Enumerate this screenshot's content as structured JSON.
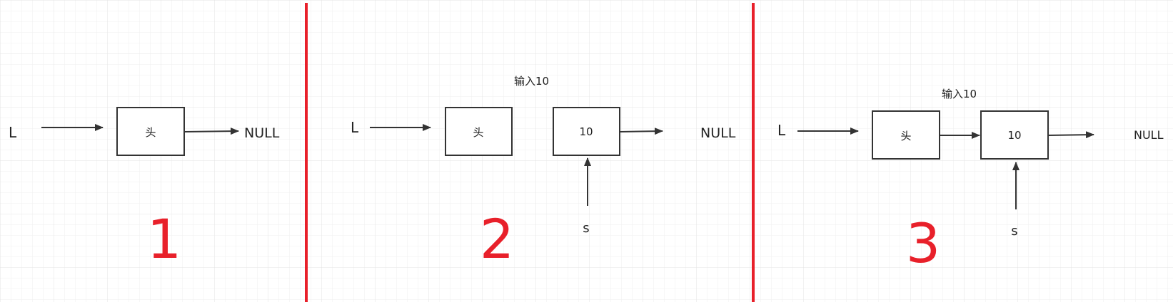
{
  "colors": {
    "background": "#ffffff",
    "grid": "#e6e6e6",
    "divider": "#e8202a",
    "stroke": "#333333",
    "text": "#222222",
    "step_number": "#e8202a"
  },
  "panels": [
    {
      "step": "1",
      "pointer_label": "L",
      "head_label": "头",
      "null_label": "NULL"
    },
    {
      "step": "2",
      "pointer_label": "L",
      "head_label": "头",
      "input_label": "输入10",
      "new_node_label": "10",
      "new_pointer_label": "s",
      "null_label": "NULL"
    },
    {
      "step": "3",
      "pointer_label": "L",
      "head_label": "头",
      "input_label": "输入10",
      "new_node_label": "10",
      "new_pointer_label": "s",
      "null_label": "NULL"
    }
  ]
}
